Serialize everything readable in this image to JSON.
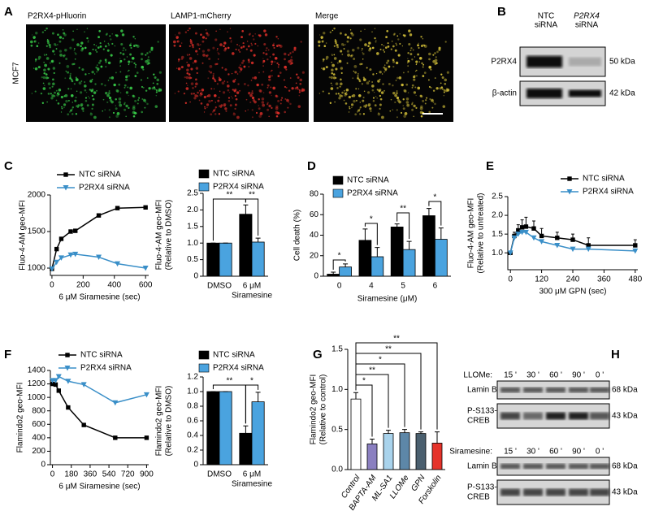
{
  "panel_letters": [
    "A",
    "B",
    "C",
    "D",
    "E",
    "F",
    "G",
    "H"
  ],
  "panel_a": {
    "channels": [
      "P2RX4-pHluorin",
      "LAMP1-mCherry",
      "Merge"
    ],
    "cell_line": "MCF7"
  },
  "panel_b": {
    "lanes": [
      [
        "NTC",
        "siRNA"
      ],
      [
        "P2RX4",
        "siRNA"
      ]
    ],
    "rows": [
      {
        "label": "P2RX4",
        "size": "50 kDa"
      },
      {
        "label": "β-actin",
        "size": "42 kDa"
      }
    ]
  },
  "panel_h": {
    "blots": [
      {
        "treatment": "LLOMe:",
        "times": [
          "15 '",
          "30 '",
          "60 '",
          "90 '",
          "0 '"
        ],
        "rows": [
          {
            "label": [
              "Lamin B"
            ],
            "size": "68 kDa"
          },
          {
            "label": [
              "P-S133-",
              "CREB"
            ],
            "size": "43 kDa"
          }
        ]
      },
      {
        "treatment": "Siramesine:",
        "times": [
          "15 '",
          "30 '",
          "60 '",
          "90 '",
          "0 '"
        ],
        "rows": [
          {
            "label": [
              "Lamin B"
            ],
            "size": "68 kDa"
          },
          {
            "label": [
              "P-S133-",
              "CREB"
            ],
            "size": "43 kDa"
          }
        ]
      }
    ]
  },
  "chart_data": [
    {
      "type": "line",
      "ylabel": [
        "Fluo-4-AM geo-MFI"
      ],
      "xlabel": "6 μM Siramesine (sec)",
      "x": [
        0,
        30,
        60,
        120,
        150,
        300,
        420,
        600
      ],
      "series": [
        {
          "name": "NTC siRNA",
          "color": "#000000",
          "marker": "square",
          "values": [
            990,
            1260,
            1400,
            1500,
            1510,
            1720,
            1820,
            1830
          ]
        },
        {
          "name": "P2RX4 siRNA",
          "color": "#3a8fc8",
          "marker": "triangle",
          "values": [
            990,
            1080,
            1140,
            1180,
            1190,
            1150,
            1060,
            1000
          ]
        }
      ],
      "xlim": [
        -10,
        620
      ],
      "xticks": [
        0,
        200,
        400,
        600
      ],
      "ylim": [
        900,
        2000
      ],
      "yticks": [
        1000,
        1500,
        2000
      ]
    },
    {
      "type": "bar",
      "ylabel": [
        "Fluo-4-AM geo-MFI",
        "(Relative to DMSO)"
      ],
      "xlabel": "Siramesine",
      "categories": [
        "DMSO",
        "6 μM"
      ],
      "series": [
        {
          "name": "NTC siRNA",
          "color": "#000000",
          "values": [
            1.0,
            1.87
          ],
          "errors": [
            0,
            0.28
          ]
        },
        {
          "name": "P2RX4 siRNA",
          "color": "#4aa3df",
          "values": [
            1.0,
            1.03
          ],
          "errors": [
            0,
            0.12
          ]
        }
      ],
      "ylim": [
        0,
        2.5
      ],
      "yticks": [
        0,
        0.5,
        {
          "value": 1,
          "label": "1.0"
        },
        1.5,
        {
          "value": 2,
          "label": "2.0"
        },
        2.5
      ],
      "annotations": [
        "**",
        "**"
      ]
    },
    {
      "type": "bar",
      "ylabel": [
        "Cell death (%)"
      ],
      "xlabel": "Siramesine (μM)",
      "categories": [
        "0",
        "4",
        "5",
        "6"
      ],
      "series": [
        {
          "name": "NTC siRNA",
          "color": "#000000",
          "values": [
            2,
            35,
            48,
            59
          ],
          "errors": [
            2,
            11,
            3,
            7
          ]
        },
        {
          "name": "P2RX4 siRNA",
          "color": "#4aa3df",
          "values": [
            9,
            19,
            26,
            36
          ],
          "errors": [
            3,
            9,
            8,
            11
          ]
        }
      ],
      "ylim": [
        0,
        80
      ],
      "yticks": [
        0,
        20,
        40,
        60,
        80
      ],
      "annotations": [
        "*",
        "*",
        "**",
        "*"
      ]
    },
    {
      "type": "line",
      "ylabel": [
        "Fluo-4-AM geo-MFI",
        "(Relative to untreated)"
      ],
      "xlabel": "300 μM GPN (sec)",
      "x": [
        0,
        15,
        30,
        45,
        60,
        90,
        120,
        180,
        240,
        300,
        480
      ],
      "series": [
        {
          "name": "NTC siRNA",
          "color": "#000000",
          "marker": "square",
          "values": [
            1.0,
            1.45,
            1.6,
            1.68,
            1.7,
            1.65,
            1.45,
            1.4,
            1.35,
            1.2,
            1.2
          ],
          "errors": [
            0,
            0.1,
            0.15,
            0.2,
            0.25,
            0.2,
            0.2,
            0.15,
            0.15,
            0.2,
            0.15
          ]
        },
        {
          "name": "P2RX4 siRNA",
          "color": "#3a8fc8",
          "marker": "triangle",
          "values": [
            1.0,
            1.4,
            1.5,
            1.55,
            1.55,
            1.4,
            1.3,
            1.2,
            1.1,
            1.1,
            1.05
          ],
          "errors": [
            0,
            0,
            0,
            0,
            0,
            0,
            0,
            0,
            0,
            0,
            0
          ]
        }
      ],
      "xlim": [
        -10,
        490
      ],
      "xticks": [
        0,
        120,
        240,
        360,
        480
      ],
      "ylim": [
        0.55,
        2.5
      ],
      "yticks": [
        {
          "value": 1,
          "label": "1.0"
        },
        1.5,
        {
          "value": 2,
          "label": "2.0"
        },
        2.5
      ]
    },
    {
      "type": "line",
      "ylabel": [
        "Flamindo2 geo-MFI"
      ],
      "xlabel": "6 μM Siramesine (sec)",
      "x": [
        0,
        30,
        60,
        150,
        300,
        600,
        900
      ],
      "series": [
        {
          "name": "NTC siRNA",
          "color": "#000000",
          "marker": "square",
          "values": [
            1200,
            1190,
            1100,
            850,
            590,
            400,
            400
          ]
        },
        {
          "name": "P2RX4 siRNA",
          "color": "#3a8fc8",
          "marker": "triangle",
          "values": [
            1250,
            1250,
            1310,
            1240,
            1190,
            920,
            1040
          ]
        }
      ],
      "xlim": [
        -20,
        920
      ],
      "xticks": [
        0,
        180,
        360,
        540,
        720,
        900
      ],
      "ylim": [
        0,
        1400
      ],
      "yticks": [
        0,
        200,
        400,
        600,
        800,
        1000,
        1200,
        1400
      ]
    },
    {
      "type": "bar",
      "ylabel": [
        "Flamindo2 geo-MFI",
        "(Relative to DMSO)"
      ],
      "xlabel": "Siramesine",
      "categories": [
        "DMSO",
        "6 μM"
      ],
      "series": [
        {
          "name": "NTC siRNA",
          "color": "#000000",
          "values": [
            1.0,
            0.43
          ],
          "errors": [
            0,
            0.1
          ]
        },
        {
          "name": "P2RX4 siRNA",
          "color": "#4aa3df",
          "values": [
            1.0,
            0.86
          ],
          "errors": [
            0,
            0.13
          ]
        }
      ],
      "ylim": [
        0,
        1.2
      ],
      "yticks": [
        0,
        0.2,
        0.4,
        0.6,
        0.8,
        {
          "value": 1,
          "label": "1.0"
        },
        1.2
      ],
      "annotations": [
        "**",
        "*"
      ]
    },
    {
      "type": "bar",
      "ylabel": [
        "Flamindo2 geo-MFI",
        "(Relative to control)"
      ],
      "categories": [
        "Control",
        "BAPTA-AM",
        "ML-SA1",
        "LLOMe",
        "GPN",
        "Forskolin"
      ],
      "series": [
        {
          "values": [
            0.88,
            0.32,
            0.45,
            0.46,
            0.45,
            0.33
          ],
          "errors": [
            0.08,
            0.06,
            0.04,
            0.04,
            0.02,
            0.14
          ],
          "colors": [
            "#ffffff",
            "#8a7fc0",
            "#a9d3ec",
            "#5d87a8",
            "#4a5f6e",
            "#e5332a"
          ]
        }
      ],
      "ylim": [
        0,
        1.5
      ],
      "yticks": [
        {
          "value": 0,
          "label": "0.0"
        },
        0.5,
        {
          "value": 1,
          "label": "1.0"
        },
        1.5
      ],
      "annotations": [
        "*",
        "**",
        "*",
        "**",
        "**"
      ]
    }
  ]
}
